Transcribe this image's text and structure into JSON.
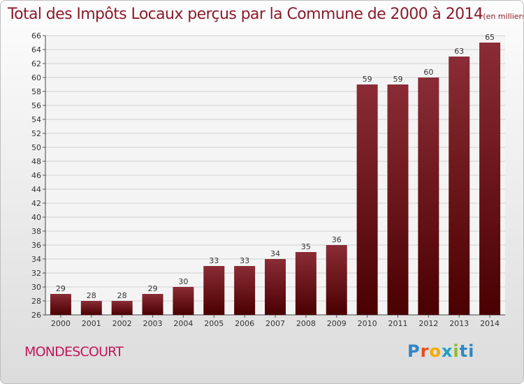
{
  "title": "Total des Impôts Locaux perçus par la Commune de 2000 à 2014",
  "subtitle": "(en milliers d'€)",
  "commune": "MONDESCOURT",
  "logo": "Proxiti",
  "colors": {
    "bar_top": "#8a2c35",
    "bar_bottom": "#4a0000",
    "title": "#8a1c2c",
    "commune": "#c2185b"
  },
  "chart_data": {
    "type": "bar",
    "categories": [
      "2000",
      "2001",
      "2002",
      "2003",
      "2004",
      "2005",
      "2006",
      "2007",
      "2008",
      "2009",
      "2010",
      "2011",
      "2012",
      "2013",
      "2014"
    ],
    "values": [
      29,
      28,
      28,
      29,
      30,
      33,
      33,
      34,
      35,
      36,
      59,
      59,
      60,
      63,
      65
    ],
    "ylim": [
      26,
      66
    ],
    "yticks": [
      26,
      28,
      30,
      32,
      34,
      36,
      38,
      40,
      42,
      44,
      46,
      48,
      50,
      52,
      54,
      56,
      58,
      60,
      62,
      64,
      66
    ],
    "grid": true
  }
}
